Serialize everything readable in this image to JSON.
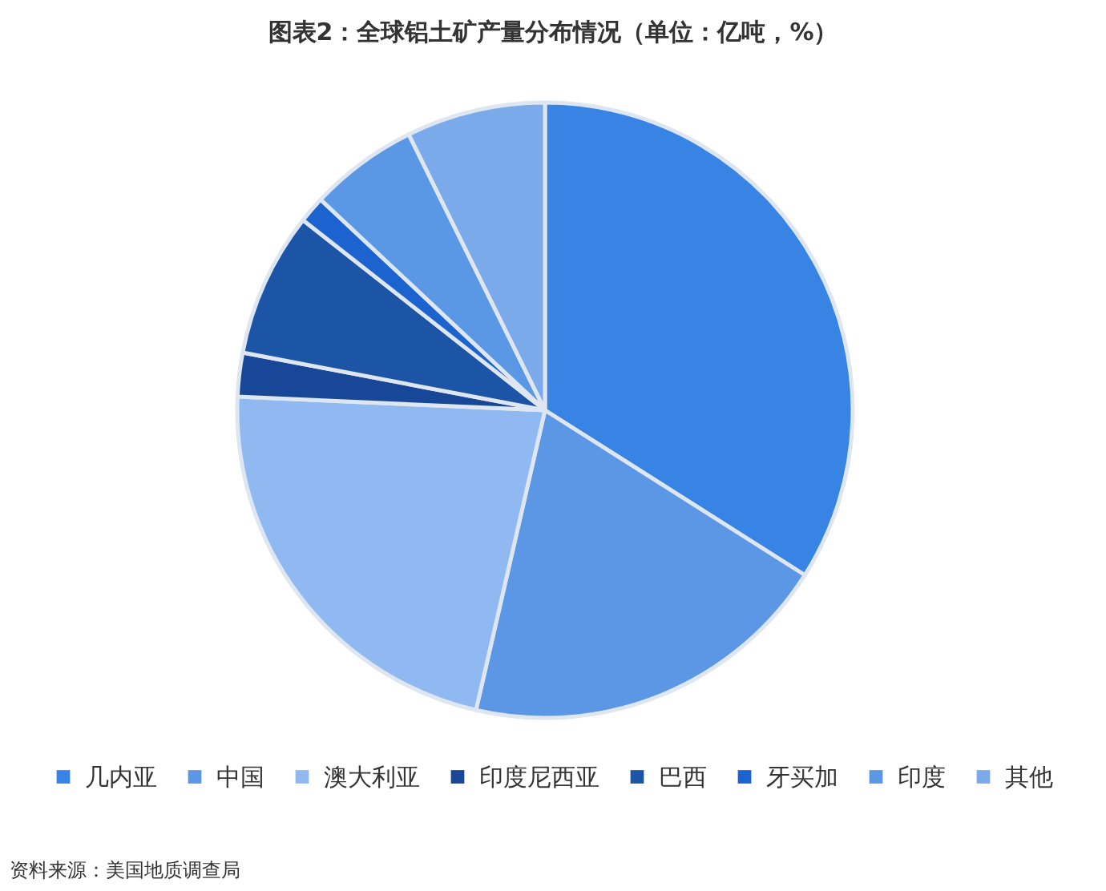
{
  "chart_data": {
    "type": "pie",
    "title": "图表2：全球铝土矿产量分布情况（单位：亿吨，%）",
    "categories": [
      "几内亚",
      "中国",
      "澳大利亚",
      "印度尼西亚",
      "巴西",
      "牙买加",
      "印度",
      "其他"
    ],
    "values": [
      34.0,
      19.6,
      22.1,
      2.3,
      7.6,
      1.4,
      5.7,
      7.3
    ],
    "colors": [
      "#3784e4",
      "#5b97e4",
      "#8fb9f0",
      "#174796",
      "#1c54a6",
      "#1d63d0",
      "#5a98e6",
      "#7baaeb"
    ],
    "legend": "bottom",
    "annotations": [
      "资料来源：美国地质调查局"
    ]
  }
}
